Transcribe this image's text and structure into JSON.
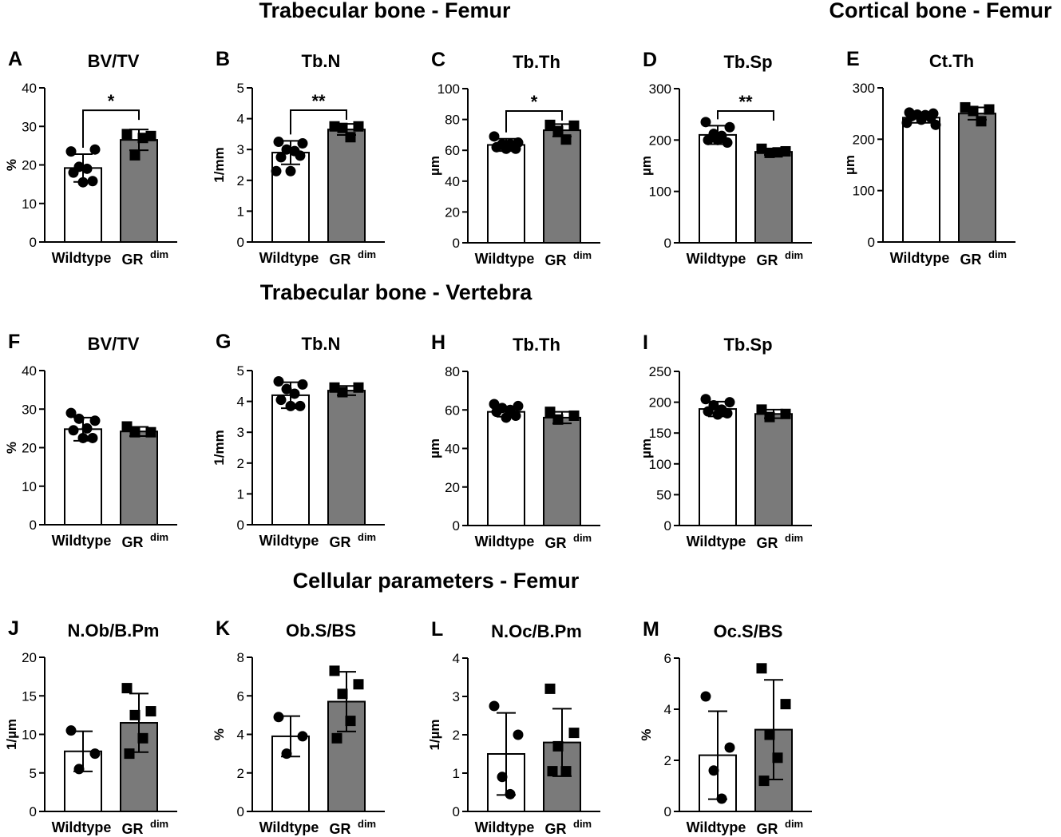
{
  "sections": [
    {
      "id": "femur-trab",
      "label": "Trabecular bone - Femur"
    },
    {
      "id": "femur-cort",
      "label": "Cortical bone - Femur"
    },
    {
      "id": "vertebra-trab",
      "label": "Trabecular bone - Vertebra"
    },
    {
      "id": "femur-cell",
      "label": "Cellular parameters - Femur"
    }
  ],
  "colors": {
    "wildtype_bar": "#ffffff",
    "grdim_bar": "#7a7a7a",
    "axis": "#000000"
  },
  "chart_data": [
    {
      "panel": "A",
      "type": "bar",
      "title": "BV/TV",
      "ylabel": "%",
      "ylim": [
        0,
        40
      ],
      "ticks": [
        "0",
        "10",
        "20",
        "30",
        "40"
      ],
      "tickvals": [
        0,
        10,
        20,
        30,
        40
      ],
      "categories": [
        "Wildtype",
        "GR"
      ],
      "category_sup": [
        "",
        "dim"
      ],
      "values": [
        19.2,
        26.5
      ],
      "error": [
        3.6,
        2.7
      ],
      "points": [
        [
          23.5,
          24,
          19.5,
          19,
          18,
          15.8,
          15.5
        ],
        [
          28,
          27.5,
          22.5,
          27
        ]
      ],
      "significance": "*"
    },
    {
      "panel": "B",
      "type": "bar",
      "title": "Tb.N",
      "ylabel": "1/mm",
      "ylim": [
        0,
        5
      ],
      "ticks": [
        "0",
        "1",
        "2",
        "3",
        "4",
        "5"
      ],
      "tickvals": [
        0,
        1,
        2,
        3,
        4,
        5
      ],
      "categories": [
        "Wildtype",
        "GR"
      ],
      "category_sup": [
        "",
        "dim"
      ],
      "values": [
        2.9,
        3.65
      ],
      "error": [
        0.38,
        0.18
      ],
      "points": [
        [
          3.25,
          3.2,
          3.0,
          2.95,
          2.75,
          2.8,
          2.3,
          2.3
        ],
        [
          3.75,
          3.75,
          3.7,
          3.4
        ]
      ],
      "significance": "**"
    },
    {
      "panel": "C",
      "type": "bar",
      "title": "Tb.Th",
      "ylabel": "µm",
      "ylim": [
        0,
        100
      ],
      "ticks": [
        "0",
        "20",
        "40",
        "60",
        "80",
        "100"
      ],
      "tickvals": [
        0,
        20,
        40,
        60,
        80,
        100
      ],
      "categories": [
        "Wildtype",
        "GR"
      ],
      "category_sup": [
        "",
        "dim"
      ],
      "values": [
        63.5,
        73
      ],
      "error": [
        4,
        4
      ],
      "points": [
        [
          69,
          65,
          64,
          64,
          62,
          61,
          61
        ],
        [
          76.5,
          76,
          72.5,
          67
        ]
      ],
      "significance": "*"
    },
    {
      "panel": "D",
      "type": "bar",
      "title": "Tb.Sp",
      "ylabel": "µm",
      "ylim": [
        0,
        300
      ],
      "ticks": [
        "0",
        "100",
        "200",
        "300"
      ],
      "tickvals": [
        0,
        100,
        200,
        300
      ],
      "categories": [
        "Wildtype",
        "GR"
      ],
      "category_sup": [
        "",
        "dim"
      ],
      "values": [
        210,
        177
      ],
      "error": [
        18,
        6
      ],
      "points": [
        [
          235,
          225,
          212,
          208,
          200,
          195,
          200
        ],
        [
          183,
          178,
          175,
          176
        ]
      ],
      "significance": "**"
    },
    {
      "panel": "E",
      "type": "bar",
      "title": "Ct.Th",
      "ylabel": "µm",
      "ylim": [
        0,
        300
      ],
      "ticks": [
        "0",
        "100",
        "200",
        "300"
      ],
      "tickvals": [
        0,
        100,
        200,
        300
      ],
      "categories": [
        "Wildtype",
        "GR"
      ],
      "category_sup": [
        "",
        "dim"
      ],
      "values": [
        242,
        250
      ],
      "error": [
        10,
        12
      ],
      "points": [
        [
          252,
          250,
          248,
          247,
          245,
          242,
          238,
          232,
          228
        ],
        [
          262,
          258,
          255,
          235
        ]
      ],
      "significance": ""
    },
    {
      "panel": "F",
      "type": "bar",
      "title": "BV/TV",
      "ylabel": "%",
      "ylim": [
        0,
        40
      ],
      "ticks": [
        "0",
        "10",
        "20",
        "30",
        "40"
      ],
      "tickvals": [
        0,
        10,
        20,
        30,
        40
      ],
      "categories": [
        "Wildtype",
        "GR"
      ],
      "category_sup": [
        "",
        "dim"
      ],
      "values": [
        24.8,
        24.2
      ],
      "error": [
        3,
        1.2
      ],
      "points": [
        [
          29,
          27,
          27.5,
          25,
          24.5,
          22.5,
          22.5
        ],
        [
          25.5,
          24,
          24
        ]
      ],
      "significance": ""
    },
    {
      "panel": "G",
      "type": "bar",
      "title": "Tb.N",
      "ylabel": "1/mm",
      "ylim": [
        0,
        5
      ],
      "ticks": [
        "0",
        "1",
        "2",
        "3",
        "4",
        "5"
      ],
      "tickvals": [
        0,
        1,
        2,
        3,
        4,
        5
      ],
      "categories": [
        "Wildtype",
        "GR"
      ],
      "category_sup": [
        "",
        "dim"
      ],
      "values": [
        4.2,
        4.35
      ],
      "error": [
        0.42,
        0.15
      ],
      "points": [
        [
          4.65,
          4.55,
          4.4,
          4.25,
          4.05,
          3.85,
          3.85
        ],
        [
          4.45,
          4.45,
          4.3
        ]
      ],
      "significance": ""
    },
    {
      "panel": "H",
      "type": "bar",
      "title": "Tb.Th",
      "ylabel": "µm",
      "ylim": [
        0,
        80
      ],
      "ticks": [
        "0",
        "20",
        "40",
        "60",
        "80"
      ],
      "tickvals": [
        0,
        20,
        40,
        60,
        80
      ],
      "categories": [
        "Wildtype",
        "GR"
      ],
      "category_sup": [
        "",
        "dim"
      ],
      "values": [
        59,
        56
      ],
      "error": [
        2.5,
        3
      ],
      "points": [
        [
          63,
          62,
          61,
          60,
          59,
          57,
          56
        ],
        [
          59,
          57,
          55
        ]
      ],
      "significance": ""
    },
    {
      "panel": "I",
      "type": "bar",
      "title": "Tb.Sp",
      "ylabel": "µm",
      "ylim": [
        0,
        250
      ],
      "ticks": [
        "0",
        "50",
        "100",
        "150",
        "200",
        "250"
      ],
      "tickvals": [
        0,
        50,
        100,
        150,
        200,
        250
      ],
      "categories": [
        "Wildtype",
        "GR"
      ],
      "category_sup": [
        "",
        "dim"
      ],
      "values": [
        189,
        181
      ],
      "error": [
        12,
        7
      ],
      "points": [
        [
          205,
          200,
          195,
          188,
          185,
          182,
          180
        ],
        [
          188,
          181,
          176
        ]
      ],
      "significance": ""
    },
    {
      "panel": "J",
      "type": "bar",
      "title": "N.Ob/B.Pm",
      "ylabel": "1/µm",
      "ylim": [
        0,
        20
      ],
      "ticks": [
        "0",
        "5",
        "10",
        "15",
        "20"
      ],
      "tickvals": [
        0,
        5,
        10,
        15,
        20
      ],
      "categories": [
        "Wildtype",
        "GR"
      ],
      "category_sup": [
        "",
        "dim"
      ],
      "values": [
        7.8,
        11.5
      ],
      "error": [
        2.6,
        3.8
      ],
      "points": [
        [
          10.5,
          7.5,
          5.5
        ],
        [
          16,
          13,
          12.5,
          9.5,
          7.5
        ]
      ],
      "significance": ""
    },
    {
      "panel": "K",
      "type": "bar",
      "title": "Ob.S/BS",
      "ylabel": "%",
      "ylim": [
        0,
        8
      ],
      "ticks": [
        "0",
        "2",
        "4",
        "6",
        "8"
      ],
      "tickvals": [
        0,
        2,
        4,
        6,
        8
      ],
      "categories": [
        "Wildtype",
        "GR"
      ],
      "category_sup": [
        "",
        "dim"
      ],
      "values": [
        3.9,
        5.7
      ],
      "error": [
        1.05,
        1.55
      ],
      "points": [
        [
          4.9,
          3.9,
          3.0
        ],
        [
          7.3,
          6.6,
          6.1,
          4.7,
          3.8
        ]
      ],
      "significance": ""
    },
    {
      "panel": "L",
      "type": "bar",
      "title": "N.Oc/B.Pm",
      "ylabel": "1/µm",
      "ylim": [
        0,
        4
      ],
      "ticks": [
        "0",
        "1",
        "2",
        "3",
        "4"
      ],
      "tickvals": [
        0,
        1,
        2,
        3,
        4
      ],
      "categories": [
        "Wildtype",
        "GR"
      ],
      "category_sup": [
        "",
        "dim"
      ],
      "values": [
        1.5,
        1.8
      ],
      "error": [
        1.07,
        0.88
      ],
      "points": [
        [
          2.75,
          2.0,
          0.9,
          0.45
        ],
        [
          3.2,
          2.05,
          1.7,
          1.05,
          1.05
        ]
      ],
      "significance": ""
    },
    {
      "panel": "M",
      "type": "bar",
      "title": "Oc.S/BS",
      "ylabel": "%",
      "ylim": [
        0,
        6
      ],
      "ticks": [
        "0",
        "2",
        "4",
        "6"
      ],
      "tickvals": [
        0,
        2,
        4,
        6
      ],
      "categories": [
        "Wildtype",
        "GR"
      ],
      "category_sup": [
        "",
        "dim"
      ],
      "values": [
        2.2,
        3.2
      ],
      "error": [
        1.72,
        1.95
      ],
      "points": [
        [
          4.5,
          2.5,
          1.6,
          0.5
        ],
        [
          5.6,
          4.2,
          3.0,
          2.1,
          1.2
        ]
      ],
      "significance": ""
    }
  ]
}
